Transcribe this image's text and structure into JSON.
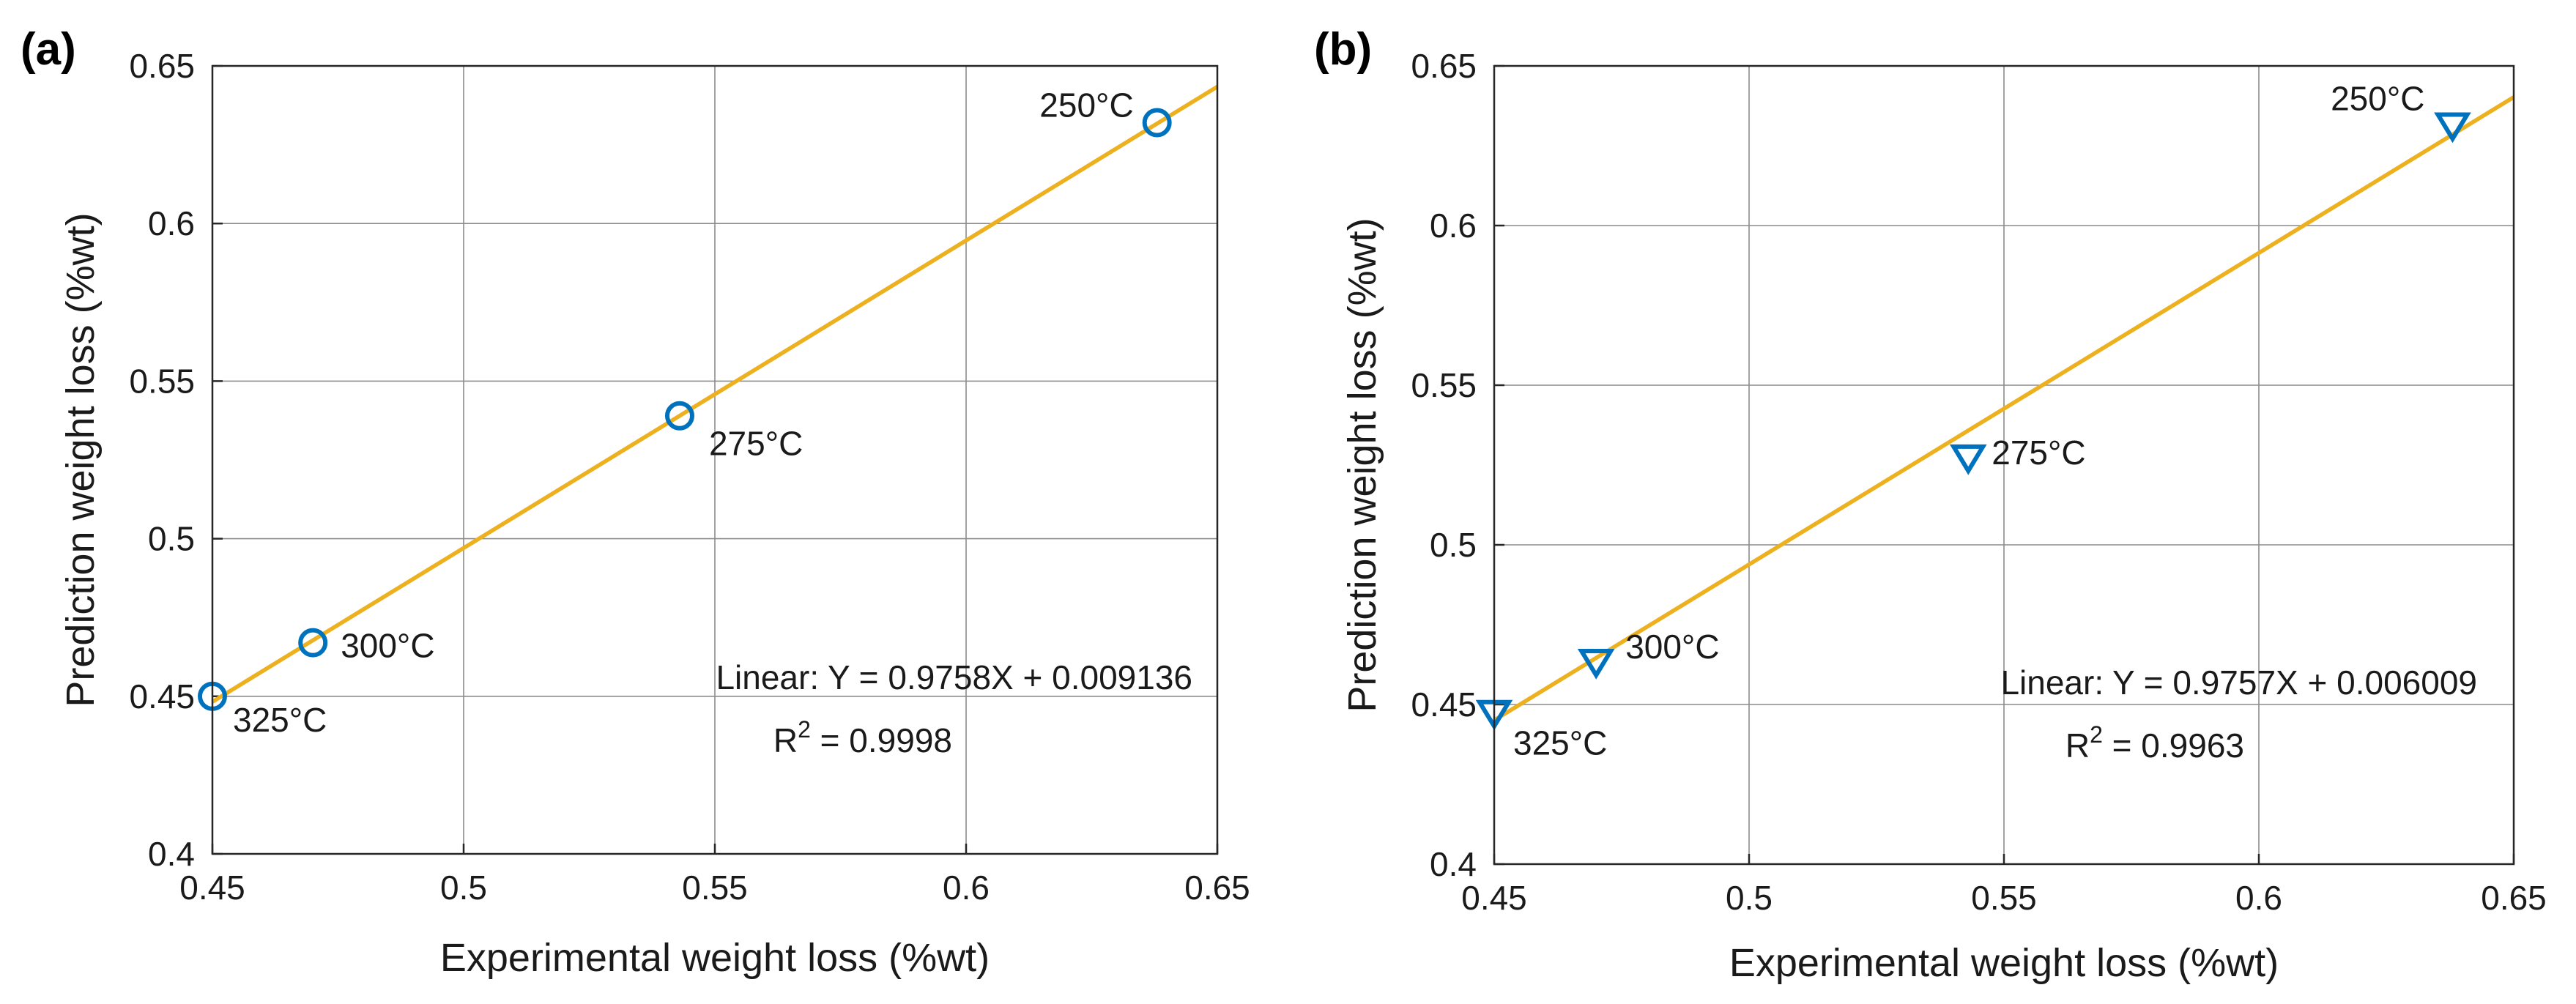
{
  "chart_data": [
    {
      "type": "scatter",
      "panel_label": "(a)",
      "xlabel": "Experimental weight loss (%wt)",
      "ylabel": "Prediction weight loss (%wt)",
      "xlim": [
        0.45,
        0.65
      ],
      "ylim": [
        0.4,
        0.65
      ],
      "x_ticks": [
        "0.45",
        "0.5",
        "0.55",
        "0.6",
        "0.65"
      ],
      "y_ticks": [
        "0.4",
        "0.45",
        "0.5",
        "0.55",
        "0.6",
        "0.65"
      ],
      "grid": true,
      "marker": "circle",
      "marker_color": "#0072BD",
      "line_color": "#EDB120",
      "points": [
        {
          "label": "250°C",
          "x": 0.638,
          "y": 0.632
        },
        {
          "label": "275°C",
          "x": 0.543,
          "y": 0.539
        },
        {
          "label": "300°C",
          "x": 0.47,
          "y": 0.467
        },
        {
          "label": "325°C",
          "x": 0.45,
          "y": 0.45
        }
      ],
      "fit": {
        "slope": 0.9758,
        "intercept": 0.009136
      },
      "equation_text": "Linear:  Y = 0.9758X + 0.009136",
      "r2_label": "R",
      "r2_sup": "2",
      "r2_value": " = 0.9998"
    },
    {
      "type": "scatter",
      "panel_label": "(b)",
      "xlabel": "Experimental weight loss (%wt)",
      "ylabel": "Prediction weight loss (%wt)",
      "xlim": [
        0.45,
        0.65
      ],
      "ylim": [
        0.4,
        0.65
      ],
      "x_ticks": [
        "0.45",
        "0.5",
        "0.55",
        "0.6",
        "0.65"
      ],
      "y_ticks": [
        "0.4",
        "0.45",
        "0.5",
        "0.55",
        "0.6",
        "0.65"
      ],
      "grid": true,
      "marker": "triangle-down",
      "marker_color": "#0072BD",
      "line_color": "#EDB120",
      "points": [
        {
          "label": "250°C",
          "x": 0.638,
          "y": 0.632
        },
        {
          "label": "275°C",
          "x": 0.543,
          "y": 0.528
        },
        {
          "label": "300°C",
          "x": 0.47,
          "y": 0.464
        },
        {
          "label": "325°C",
          "x": 0.45,
          "y": 0.448
        }
      ],
      "fit": {
        "slope": 0.9757,
        "intercept": 0.006009
      },
      "equation_text": "Linear:  Y = 0.9757X + 0.006009",
      "r2_label": "R",
      "r2_sup": "2",
      "r2_value": " = 0.9963"
    }
  ]
}
